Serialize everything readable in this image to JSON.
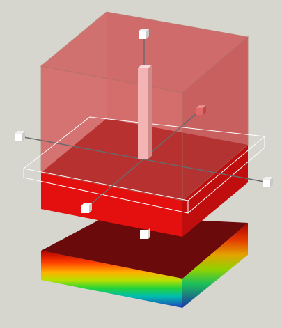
{
  "scene": {
    "background": "#d6d6cf",
    "colors": {
      "cube_translucent": "#cf4f4f",
      "slab_top": "#8b0000",
      "slab_front": "#e41010",
      "slab_right": "#c00d0d",
      "plate_top": "#6a0a0a",
      "handle": "#ffffff",
      "axis_line": "#6a6a6a",
      "bbox_outline": "#ffffff"
    },
    "icons": {
      "handle": "square-handle-icon",
      "axis": "manipulator-axis"
    }
  }
}
